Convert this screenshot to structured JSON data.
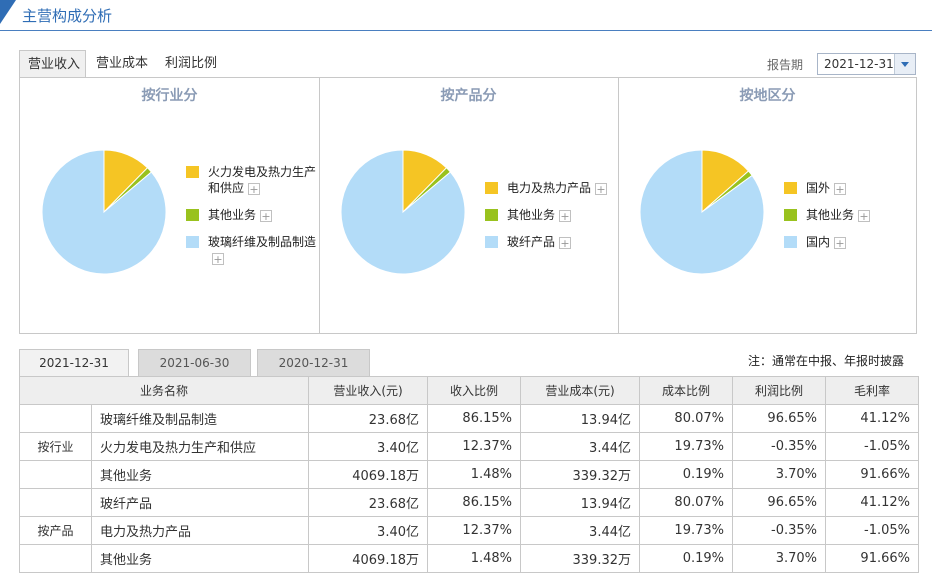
{
  "header": {
    "title": "主营构成分析"
  },
  "top_tabs": [
    {
      "label": "营业收入",
      "active": true
    },
    {
      "label": "营业成本",
      "active": false
    },
    {
      "label": "利润比例",
      "active": false
    }
  ],
  "report_period": {
    "label": "报告期",
    "value": "2021-12-31"
  },
  "colors": {
    "yellow": "#f5c524",
    "green": "#99c21e",
    "blue": "#b3dcf8",
    "accent": "#2f6db5"
  },
  "charts": [
    {
      "title": "按行业分",
      "slices": [
        {
          "label": "火力发电及热力生产和供应",
          "value": 12.37,
          "color": "#f5c524"
        },
        {
          "label": "其他业务",
          "value": 1.48,
          "color": "#99c21e"
        },
        {
          "label": "玻璃纤维及制品制造",
          "value": 86.15,
          "color": "#b3dcf8"
        }
      ]
    },
    {
      "title": "按产品分",
      "slices": [
        {
          "label": "电力及热力产品",
          "value": 12.37,
          "color": "#f5c524"
        },
        {
          "label": "其他业务",
          "value": 1.48,
          "color": "#99c21e"
        },
        {
          "label": "玻纤产品",
          "value": 86.15,
          "color": "#b3dcf8"
        }
      ]
    },
    {
      "title": "按地区分",
      "slices": [
        {
          "label": "国外",
          "value": 13.5,
          "color": "#f5c524"
        },
        {
          "label": "其他业务",
          "value": 1.48,
          "color": "#99c21e"
        },
        {
          "label": "国内",
          "value": 85.02,
          "color": "#b3dcf8"
        }
      ]
    }
  ],
  "period_tabs": [
    {
      "label": "2021-12-31",
      "active": true
    },
    {
      "label": "2021-06-30",
      "active": false
    },
    {
      "label": "2020-12-31",
      "active": false
    }
  ],
  "note": "注：通常在中报、年报时披露",
  "table": {
    "headers": [
      "业务名称",
      "营业收入(元)",
      "收入比例",
      "营业成本(元)",
      "成本比例",
      "利润比例",
      "毛利率"
    ],
    "groups": [
      {
        "label": "按行业",
        "rows": [
          [
            "玻璃纤维及制品制造",
            "23.68亿",
            "86.15%",
            "13.94亿",
            "80.07%",
            "96.65%",
            "41.12%"
          ],
          [
            "火力发电及热力生产和供应",
            "3.40亿",
            "12.37%",
            "3.44亿",
            "19.73%",
            "-0.35%",
            "-1.05%"
          ],
          [
            "其他业务",
            "4069.18万",
            "1.48%",
            "339.32万",
            "0.19%",
            "3.70%",
            "91.66%"
          ]
        ]
      },
      {
        "label": "按产品",
        "rows": [
          [
            "玻纤产品",
            "23.68亿",
            "86.15%",
            "13.94亿",
            "80.07%",
            "96.65%",
            "41.12%"
          ],
          [
            "电力及热力产品",
            "3.40亿",
            "12.37%",
            "3.44亿",
            "19.73%",
            "-0.35%",
            "-1.05%"
          ],
          [
            "其他业务",
            "4069.18万",
            "1.48%",
            "339.32万",
            "0.19%",
            "3.70%",
            "91.66%"
          ]
        ]
      }
    ]
  }
}
